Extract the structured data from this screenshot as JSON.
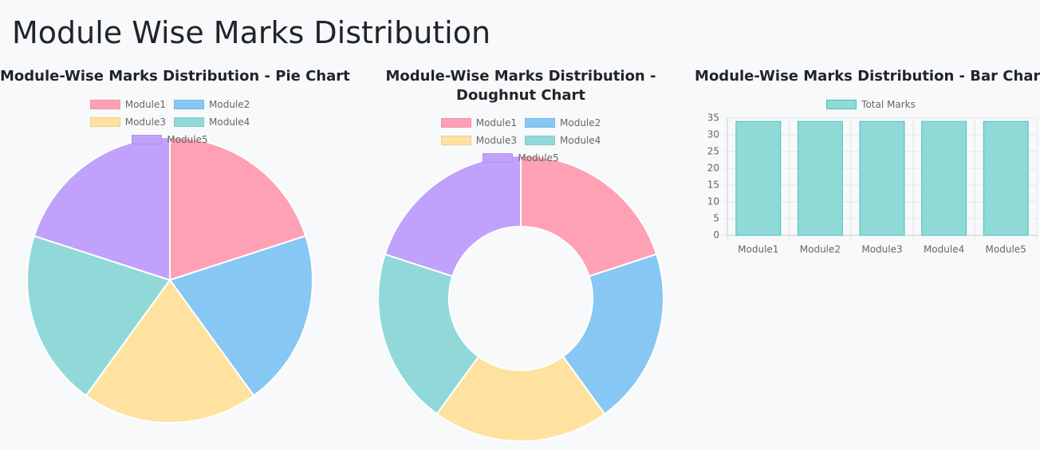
{
  "title": "Module Wise Marks Distribution",
  "chart_data": [
    {
      "type": "pie",
      "title": "Module-Wise Marks Distribution - Pie Chart",
      "categories": [
        "Module1",
        "Module2",
        "Module3",
        "Module4",
        "Module5"
      ],
      "values": [
        34,
        34,
        34,
        34,
        34
      ],
      "colors": [
        "#ffa1b5",
        "#86c7f3",
        "#ffe29f",
        "#91d9d9",
        "#c0a1fb"
      ]
    },
    {
      "type": "doughnut",
      "title": "Module-Wise Marks Distribution - Doughnut Chart",
      "categories": [
        "Module1",
        "Module2",
        "Module3",
        "Module4",
        "Module5"
      ],
      "values": [
        34,
        34,
        34,
        34,
        34
      ],
      "colors": [
        "#ffa1b5",
        "#86c7f3",
        "#ffe29f",
        "#91d9d9",
        "#c0a1fb"
      ]
    },
    {
      "type": "bar",
      "title": "Module-Wise Marks Distribution - Bar Chart",
      "categories": [
        "Module1",
        "Module2",
        "Module3",
        "Module4",
        "Module5"
      ],
      "series": [
        {
          "name": "Total Marks",
          "color": "#8fd9d7",
          "values": [
            34,
            34,
            34,
            34,
            34
          ]
        }
      ],
      "ylim": [
        0,
        35
      ],
      "yticks": [
        0,
        5,
        10,
        15,
        20,
        25,
        30,
        35
      ],
      "grid": true
    }
  ]
}
